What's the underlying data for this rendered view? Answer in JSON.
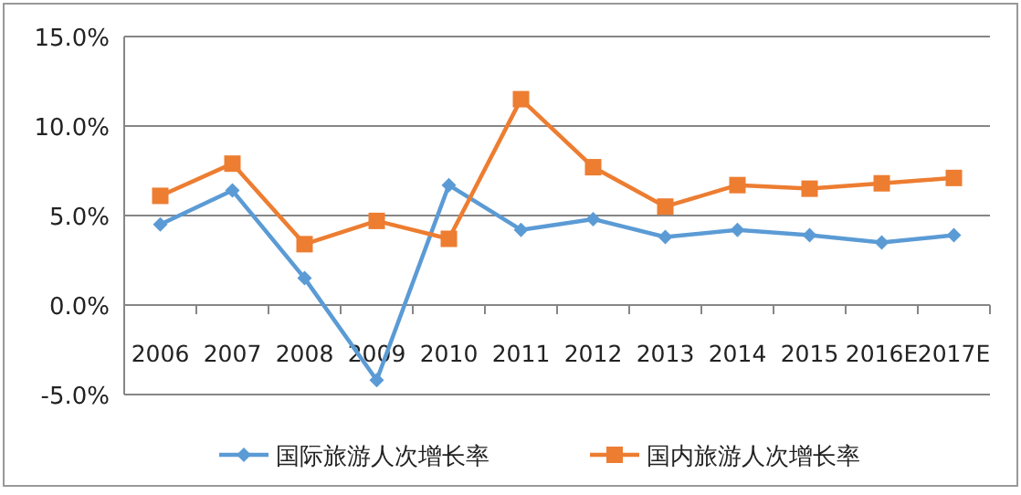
{
  "chart_data": {
    "type": "line",
    "categories": [
      "2006",
      "2007",
      "2008",
      "2009",
      "2010",
      "2011",
      "2012",
      "2013",
      "2014",
      "2015",
      "2016E",
      "2017E"
    ],
    "series": [
      {
        "name": "国际旅游人次增长率",
        "color": "#5b9bd5",
        "marker": "diamond",
        "values": [
          4.5,
          6.4,
          1.5,
          -4.2,
          6.7,
          4.2,
          4.8,
          3.8,
          4.2,
          3.9,
          3.5,
          3.9
        ]
      },
      {
        "name": "国内旅游人次增长率",
        "color": "#ed7d31",
        "marker": "square",
        "values": [
          6.1,
          7.9,
          3.4,
          4.7,
          3.7,
          11.5,
          7.7,
          5.5,
          6.7,
          6.5,
          6.8,
          7.1
        ]
      }
    ],
    "ylim": [
      -5,
      15
    ],
    "yticks": [
      {
        "value": -5,
        "label": "-5.0%"
      },
      {
        "value": 0,
        "label": "0.0%"
      },
      {
        "value": 5,
        "label": "5.0%"
      },
      {
        "value": 10,
        "label": "10.0%"
      },
      {
        "value": 15,
        "label": "15.0%"
      }
    ],
    "grid": "y",
    "legend": "bottom",
    "line_style": "solid"
  }
}
